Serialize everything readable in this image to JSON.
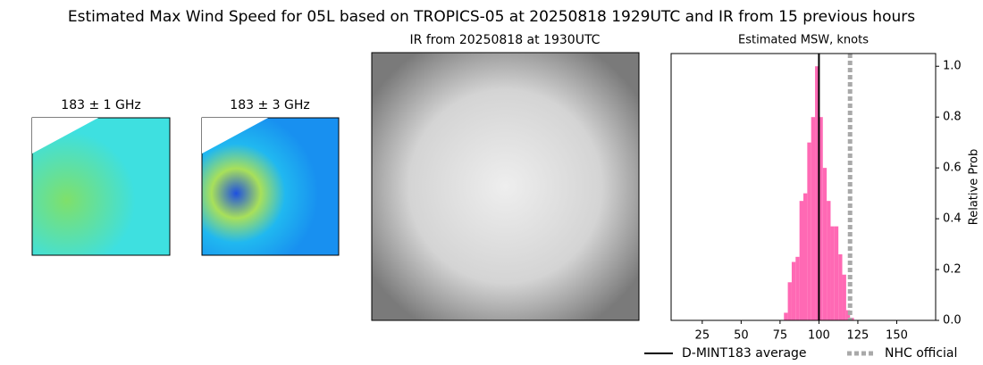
{
  "title": "Estimated Max Wind Speed for 05L based on TROPICS-05 at 20250818 1929UTC and IR from 15 previous hours",
  "panels": [
    {
      "title": "183 ± 1 GHz"
    },
    {
      "title": "183 ± 3 GHz"
    },
    {
      "title": "IR from 20250818 at 1930UTC"
    }
  ],
  "chart_data": {
    "type": "histogram",
    "title": "Estimated MSW, knots",
    "ylabel": "Relative Prob",
    "bins": [
      77.5,
      80,
      82.5,
      85,
      87.5,
      90,
      92.5,
      95,
      97.5,
      100,
      102.5,
      105,
      107.5,
      110,
      112.5,
      115,
      117.5,
      120,
      122.5
    ],
    "values": [
      0.03,
      0.15,
      0.23,
      0.25,
      0.47,
      0.5,
      0.7,
      0.8,
      1.0,
      0.8,
      0.6,
      0.47,
      0.37,
      0.37,
      0.26,
      0.18,
      0.04,
      0.01
    ],
    "color": "#ff69b4",
    "xlim": [
      5,
      175
    ],
    "xticks": [
      25,
      50,
      75,
      100,
      125,
      150
    ],
    "ylim": [
      0,
      1.05
    ],
    "yticks": [
      {
        "value": 0,
        "label": "0.0"
      },
      {
        "value": 0.2,
        "label": "0.2"
      },
      {
        "value": 0.4,
        "label": "0.4"
      },
      {
        "value": 0.6,
        "label": "0.6"
      },
      {
        "value": 0.8,
        "label": "0.8"
      },
      {
        "value": 1,
        "label": "1.0"
      }
    ],
    "y_axis_side": "right",
    "lines": [
      {
        "name": "D-MINT183 average",
        "value": 100,
        "color": "#000000",
        "dashed": false
      },
      {
        "name": "NHC official",
        "value": 120,
        "color": "#a9a9a9",
        "dashed": true
      }
    ]
  }
}
